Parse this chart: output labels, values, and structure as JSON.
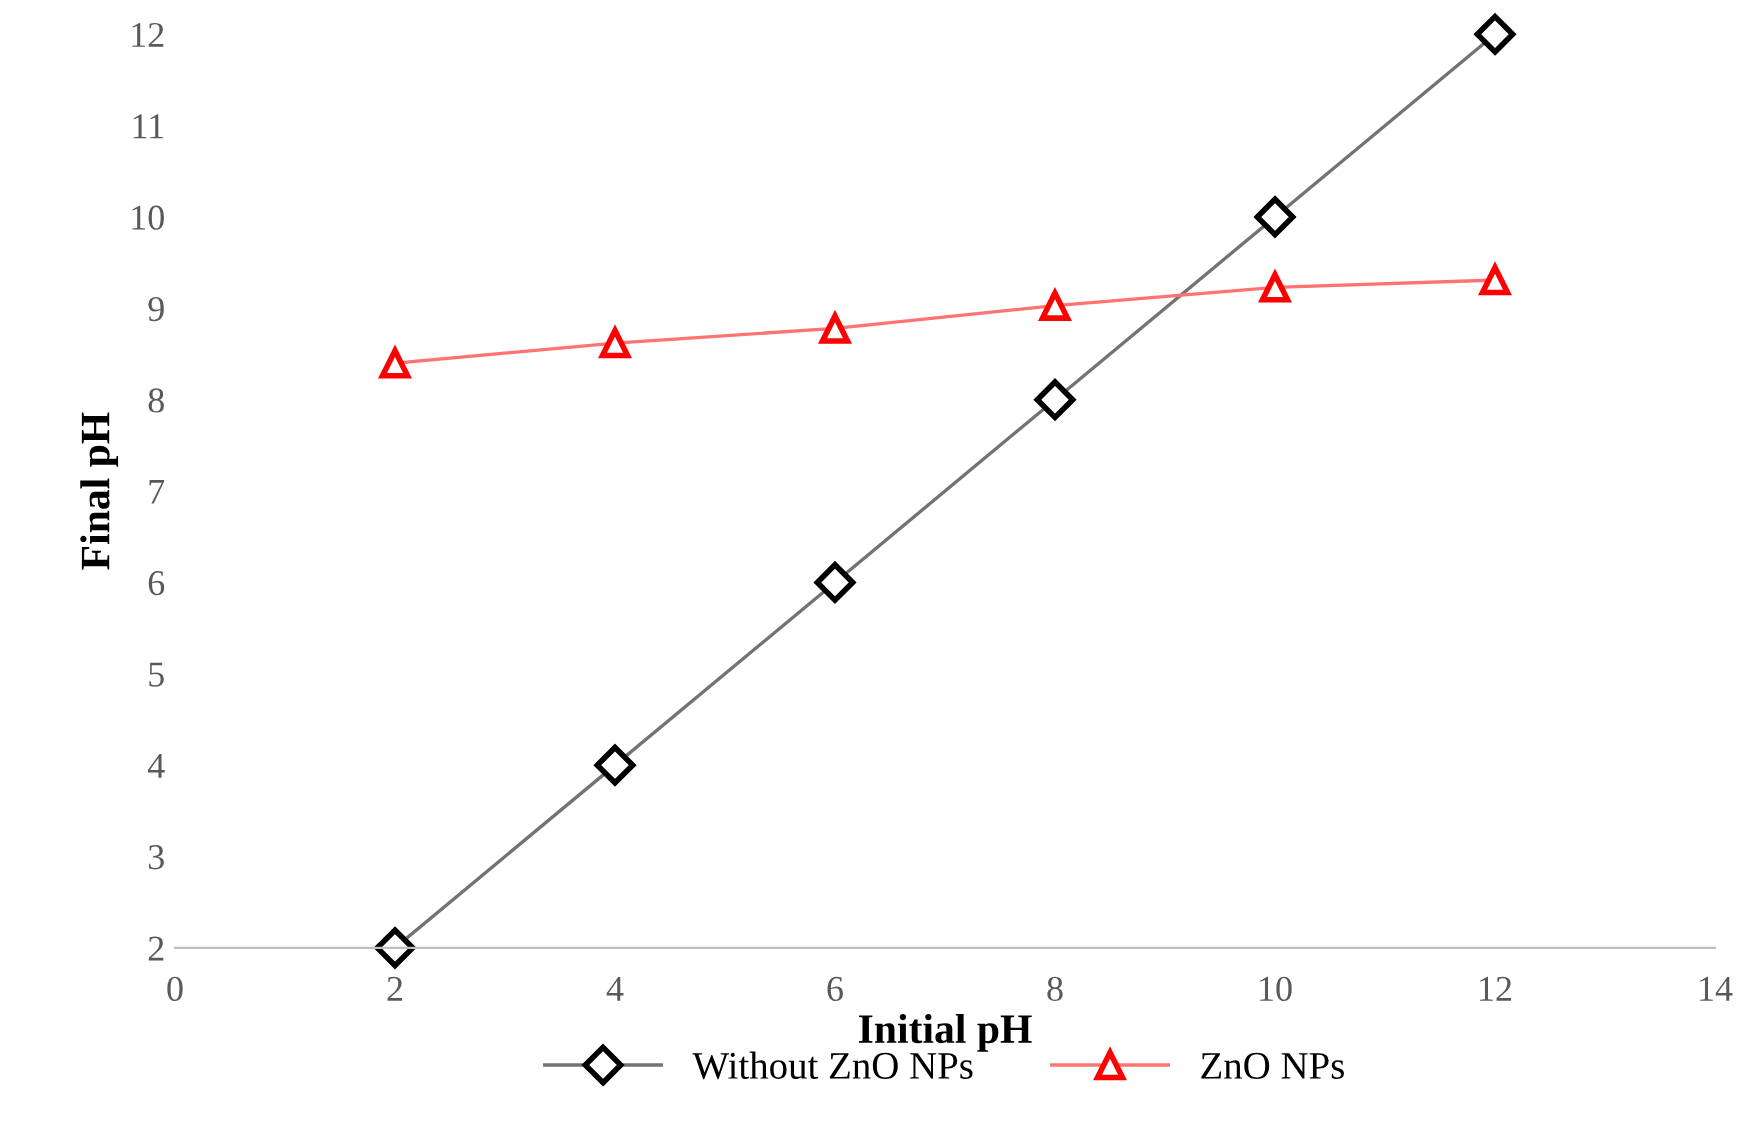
{
  "chart_data": {
    "type": "line",
    "xlabel": "Initial pH",
    "ylabel": "Final pH",
    "x": [
      2,
      4,
      6,
      8,
      10,
      12
    ],
    "series": [
      {
        "name": "Without ZnO NPs",
        "color": "#000000",
        "marker": "diamond",
        "values": [
          2,
          4,
          6,
          8,
          10,
          12
        ]
      },
      {
        "name": "ZnO NPs",
        "color": "#ff0000",
        "marker": "triangle",
        "values": [
          8.4,
          8.62,
          8.78,
          9.03,
          9.23,
          9.31
        ]
      }
    ],
    "xlim": [
      0,
      14
    ],
    "xticks": [
      0,
      2,
      4,
      6,
      8,
      10,
      12,
      14
    ],
    "ylim": [
      2,
      12
    ],
    "yticks": [
      2,
      3,
      4,
      5,
      6,
      7,
      8,
      9,
      10,
      11,
      12
    ],
    "grid": false,
    "legend": "bottom",
    "line_style": "solid"
  }
}
